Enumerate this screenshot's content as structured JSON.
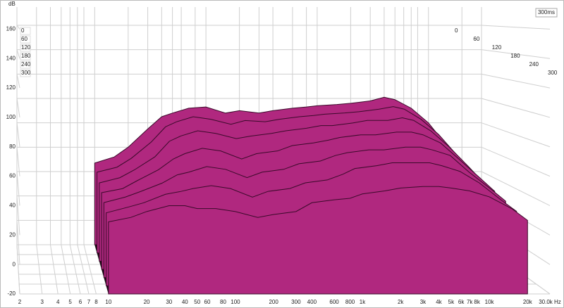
{
  "chart_data": {
    "type": "waterfall",
    "y_label": "dB",
    "time_label": "300ms",
    "x": [
      10,
      15,
      20,
      30,
      40,
      50,
      70,
      100,
      150,
      200,
      300,
      400,
      600,
      800,
      1000,
      1500,
      2000,
      3000,
      4000,
      5000,
      7000,
      10000,
      15000,
      20000
    ],
    "series": [
      {
        "time": 0,
        "values": [
          47,
          52,
          60,
          75,
          85,
          88,
          92,
          93,
          88,
          90,
          88,
          90,
          92,
          93,
          94,
          95,
          96,
          98,
          101,
          99,
          92,
          80,
          60,
          45
        ]
      },
      {
        "time": 50,
        "values": [
          44,
          48,
          55,
          68,
          80,
          84,
          88,
          86,
          82,
          85,
          84,
          86,
          88,
          89,
          90,
          91,
          92,
          94,
          96,
          94,
          86,
          74,
          56,
          42
        ]
      },
      {
        "time": 100,
        "values": [
          40,
          44,
          50,
          60,
          72,
          76,
          80,
          78,
          74,
          76,
          78,
          80,
          82,
          84,
          84,
          86,
          88,
          88,
          90,
          88,
          80,
          68,
          52,
          40
        ]
      },
      {
        "time": 150,
        "values": [
          37,
          40,
          46,
          54,
          62,
          66,
          70,
          68,
          62,
          66,
          68,
          72,
          74,
          76,
          78,
          80,
          80,
          82,
          82,
          80,
          74,
          62,
          48,
          38
        ]
      },
      {
        "time": 200,
        "values": [
          34,
          38,
          42,
          48,
          54,
          56,
          60,
          58,
          52,
          56,
          58,
          62,
          64,
          68,
          70,
          72,
          72,
          74,
          74,
          72,
          68,
          56,
          44,
          35
        ]
      },
      {
        "time": 250,
        "values": [
          31,
          35,
          38,
          44,
          46,
          48,
          50,
          48,
          42,
          46,
          48,
          52,
          54,
          58,
          62,
          64,
          66,
          66,
          66,
          64,
          60,
          52,
          40,
          32
        ]
      },
      {
        "time": 300,
        "values": [
          29,
          32,
          36,
          40,
          40,
          38,
          38,
          36,
          32,
          34,
          36,
          42,
          44,
          45,
          48,
          50,
          52,
          53,
          53,
          52,
          50,
          46,
          38,
          30
        ]
      }
    ],
    "color": "#b0287f",
    "xlim": [
      2,
      30000
    ],
    "log_x": true,
    "xticks": [
      2,
      3,
      4,
      5,
      6,
      7,
      8,
      10,
      20,
      30,
      40,
      50,
      60,
      80,
      100,
      200,
      300,
      400,
      600,
      800,
      {
        "value": 1000,
        "label": "1k"
      },
      {
        "value": 2000,
        "label": "2k"
      },
      {
        "value": 3000,
        "label": "3k"
      },
      {
        "value": 4000,
        "label": "4k"
      },
      {
        "value": 5000,
        "label": "5k"
      },
      {
        "value": 6000,
        "label": "6k"
      },
      {
        "value": 7000,
        "label": "7k"
      },
      {
        "value": 8000,
        "label": "8k"
      },
      {
        "value": 10000,
        "label": "10k"
      },
      {
        "value": 20000,
        "label": "20k"
      },
      {
        "value": 30000,
        "label": "30.0k Hz"
      }
    ],
    "ylim": [
      -20,
      175
    ],
    "yticks": [
      -20,
      0,
      20,
      40,
      60,
      80,
      100,
      120,
      140,
      160
    ],
    "tlim": [
      0,
      300
    ],
    "tticks": [
      0,
      60,
      120,
      180,
      240,
      300
    ],
    "grid": true
  }
}
